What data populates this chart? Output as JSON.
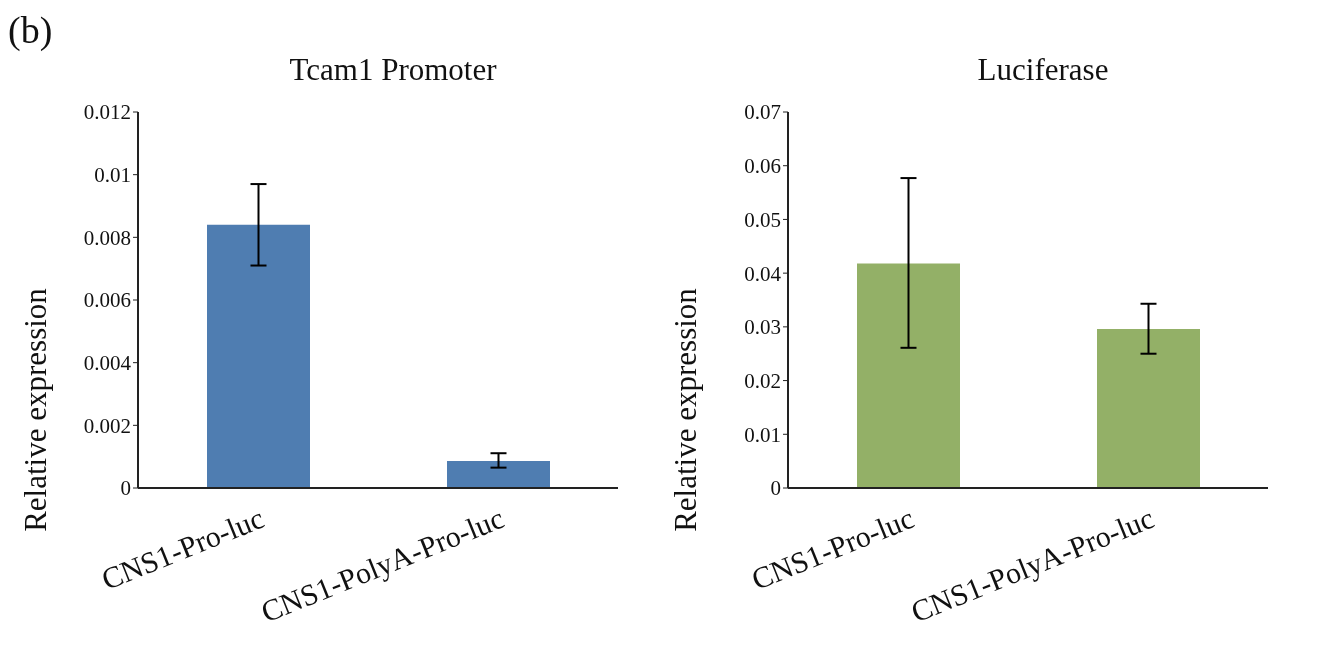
{
  "chart_data": [
    {
      "type": "bar",
      "title": "Tcam1 Promoter",
      "ylabel": "Relative expression",
      "annotations": [
        "(b)"
      ],
      "categories": [
        "CNS1-Pro-luc",
        "CNS1-PolyA-Pro-luc"
      ],
      "values": [
        0.0084,
        0.00086
      ],
      "errors": [
        [
          0.0071,
          0.0097
        ],
        [
          0.00065,
          0.00111
        ]
      ],
      "color": "#4f7db1",
      "ylim": [
        0,
        0.012
      ],
      "yticks": [
        0,
        0.002,
        0.004,
        0.006,
        0.008,
        0.01,
        0.012
      ],
      "grid": false,
      "legend": false
    },
    {
      "type": "bar",
      "title": "Luciferase",
      "ylabel": "Relative expression",
      "categories": [
        "CNS1-Pro-luc",
        "CNS1-PolyA-Pro-luc"
      ],
      "values": [
        0.0418,
        0.0296
      ],
      "errors": [
        [
          0.0261,
          0.0577
        ],
        [
          0.025,
          0.0343
        ]
      ],
      "color": "#93b067",
      "ylim": [
        0,
        0.07
      ],
      "yticks": [
        0,
        0.01,
        0.02,
        0.03,
        0.04,
        0.05,
        0.06,
        0.07
      ],
      "grid": false,
      "legend": false
    }
  ]
}
